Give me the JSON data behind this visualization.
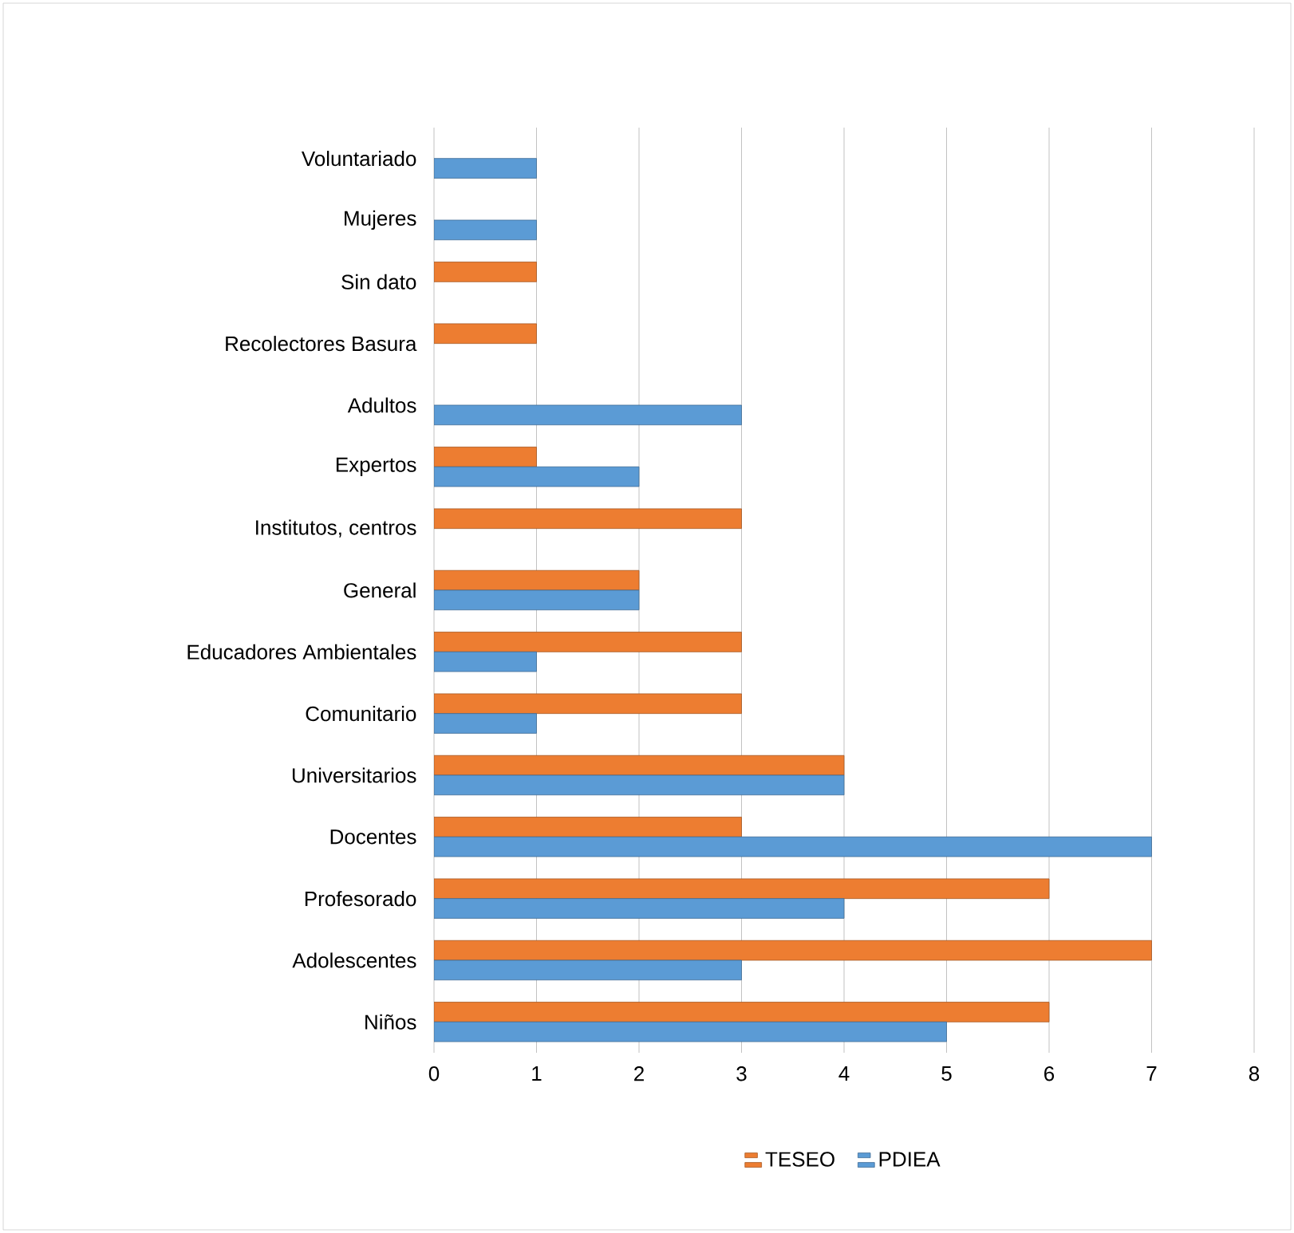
{
  "chart_data": {
    "type": "bar",
    "orientation": "horizontal",
    "categories": [
      "Voluntariado",
      "Mujeres",
      "Sin dato",
      "Recolectores Basura",
      "Adultos",
      "Expertos",
      "Institutos, centros",
      "General",
      "Educadores Ambientales",
      "Comunitario",
      "Universitarios",
      "Docentes",
      "Profesorado",
      "Adolescentes",
      "Niños"
    ],
    "series": [
      {
        "name": "TESEO",
        "color": "#ed7d31",
        "values": [
          null,
          null,
          1,
          1,
          null,
          1,
          3,
          2,
          3,
          3,
          4,
          3,
          6,
          7,
          6
        ]
      },
      {
        "name": "PDIEA",
        "color": "#5b9bd5",
        "values": [
          1,
          1,
          null,
          null,
          3,
          2,
          null,
          2,
          1,
          1,
          4,
          7,
          4,
          3,
          5
        ]
      }
    ],
    "xlim": [
      0,
      8
    ],
    "xticks": [
      0,
      1,
      2,
      3,
      4,
      5,
      6,
      7,
      8
    ],
    "grid": "x",
    "legend": "bottom"
  }
}
